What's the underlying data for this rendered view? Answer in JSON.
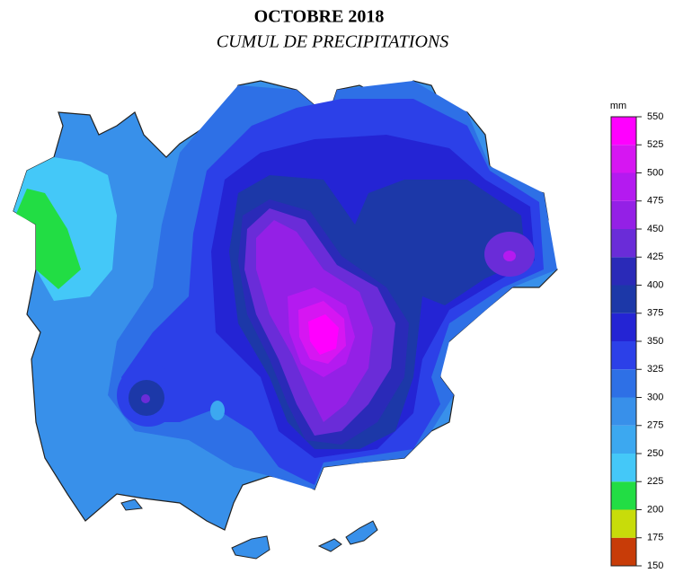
{
  "title": "OCTOBRE 2018",
  "subtitle": "CUMUL DE PRECIPITATIONS",
  "legend": {
    "unit": "mm",
    "ticks": [
      150,
      175,
      200,
      225,
      250,
      275,
      300,
      325,
      350,
      375,
      400,
      425,
      450,
      475,
      500,
      525,
      550
    ],
    "colors": [
      "#c83c08",
      "#c8dc0a",
      "#22dd44",
      "#44c8f8",
      "#3ca8f0",
      "#3890ea",
      "#2e70e6",
      "#2c40e8",
      "#2424d4",
      "#1c38a8",
      "#2a2ab8",
      "#6a2cd8",
      "#9420e6",
      "#b41af0",
      "#d616f2",
      "#ff00ff"
    ]
  }
}
